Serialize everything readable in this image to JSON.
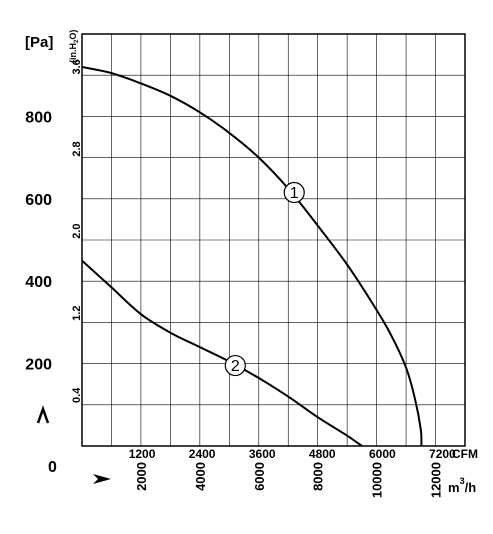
{
  "chart_data": {
    "type": "line",
    "title": "",
    "y_unit_primary": "[Pa]",
    "y_unit_secondary": "(in.H₂O)",
    "y_unit_secondary_text": "(in.H",
    "y_unit_secondary_sub": "2",
    "y_unit_secondary_end": "O)",
    "x_unit_primary": "CFM",
    "x_unit_secondary": "m³/h",
    "x_unit_secondary_base": "m",
    "x_unit_secondary_sup": "3",
    "x_unit_secondary_end": "/h",
    "zero_label": "0",
    "pa_ticks": [
      {
        "value": 200,
        "label": "200"
      },
      {
        "value": 400,
        "label": "400"
      },
      {
        "value": 600,
        "label": "600"
      },
      {
        "value": 800,
        "label": "800"
      }
    ],
    "inh2o_ticks": [
      {
        "value": 0.4,
        "label": "0.4"
      },
      {
        "value": 1.2,
        "label": "1.2"
      },
      {
        "value": 2.0,
        "label": "2.0"
      },
      {
        "value": 2.8,
        "label": "2.8"
      },
      {
        "value": 3.6,
        "label": "3.6"
      }
    ],
    "cfm_ticks": [
      {
        "value": 1200,
        "label": "1200"
      },
      {
        "value": 2400,
        "label": "2400"
      },
      {
        "value": 3600,
        "label": "3600"
      },
      {
        "value": 4800,
        "label": "4800"
      },
      {
        "value": 6000,
        "label": "6000"
      },
      {
        "value": 7200,
        "label": "7200"
      }
    ],
    "m3h_ticks": [
      {
        "value": 2000,
        "label": "2000"
      },
      {
        "value": 4000,
        "label": "4000"
      },
      {
        "value": 6000,
        "label": "6000"
      },
      {
        "value": 8000,
        "label": "8000"
      },
      {
        "value": 10000,
        "label": "10000"
      },
      {
        "value": 12000,
        "label": "12000"
      }
    ],
    "xlim_m3h": [
      0,
      13000
    ],
    "ylim_pa": [
      0,
      1000
    ],
    "grid": true,
    "series": [
      {
        "name": "1",
        "x_m3h": [
          0,
          1000,
          2000,
          3000,
          4000,
          5000,
          6000,
          7000,
          8000,
          9000,
          10000,
          10500,
          11000,
          11300,
          11500,
          11520
        ],
        "y_pa": [
          920,
          905,
          880,
          850,
          810,
          760,
          700,
          625,
          535,
          440,
          330,
          268,
          190,
          115,
          40,
          0
        ]
      },
      {
        "name": "2",
        "x_m3h": [
          0,
          1000,
          2000,
          3000,
          4000,
          5000,
          6000,
          7000,
          8000,
          9000,
          9500
        ],
        "y_pa": [
          450,
          385,
          320,
          275,
          240,
          205,
          165,
          120,
          70,
          25,
          0
        ]
      }
    ]
  }
}
